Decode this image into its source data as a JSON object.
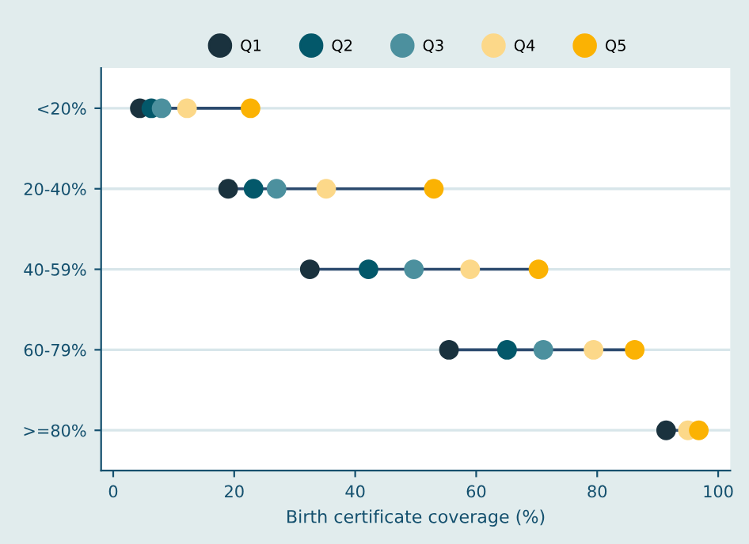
{
  "chart_data": {
    "type": "scatter",
    "orientation": "horizontal",
    "xlabel": "Birth certificate coverage (%)",
    "categories": [
      "<20%",
      "20-40%",
      "40-59%",
      "60-79%",
      ">=80%"
    ],
    "series": [
      {
        "name": "Q1",
        "color": "#1a323e",
        "values": [
          4.4,
          19,
          32.5,
          55.5,
          91.4
        ]
      },
      {
        "name": "Q2",
        "color": "#03586a",
        "values": [
          6.3,
          23.2,
          42.2,
          65.1,
          null
        ]
      },
      {
        "name": "Q3",
        "color": "#4c909e",
        "values": [
          8,
          27,
          49.7,
          71.1,
          null
        ]
      },
      {
        "name": "Q4",
        "color": "#fcd889",
        "values": [
          12.2,
          35.2,
          59,
          79.4,
          95
        ]
      },
      {
        "name": "Q5",
        "color": "#fbb203",
        "values": [
          22.7,
          53,
          70.3,
          86.2,
          96.8
        ]
      }
    ],
    "xlim": [
      -2,
      102
    ],
    "xticks": [
      0,
      20,
      40,
      60,
      80,
      100
    ],
    "grid": "y",
    "legend": "top",
    "marker": "circle"
  }
}
